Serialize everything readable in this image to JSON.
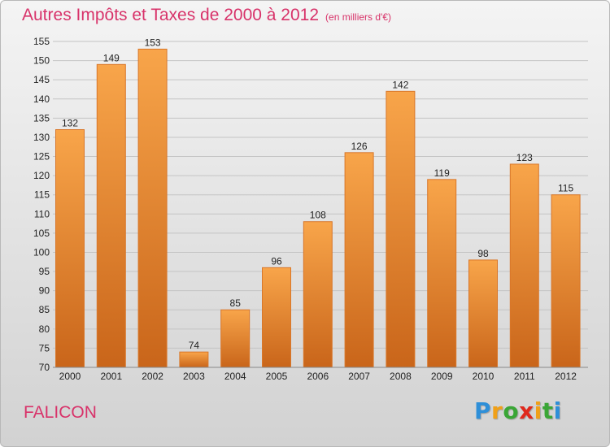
{
  "title": "Autres Impôts et Taxes de 2000 à 2012",
  "subtitle": "(en milliers d'€)",
  "place": "FALICON",
  "logo": {
    "letters": [
      "P",
      "r",
      "o",
      "x",
      "i",
      "t",
      "i"
    ],
    "colors": [
      "#2e8fd8",
      "#f0a018",
      "#3aa636",
      "#e0281c",
      "#f0a018",
      "#3aa636",
      "#2e8fd8"
    ]
  },
  "colors": {
    "bar_top": "#f8a54a",
    "bar_bottom": "#c9651a",
    "bar_edge": "#d9772a",
    "title": "#d8336a"
  },
  "chart_data": {
    "type": "bar",
    "categories": [
      "2000",
      "2001",
      "2002",
      "2003",
      "2004",
      "2005",
      "2006",
      "2007",
      "2008",
      "2009",
      "2010",
      "2011",
      "2012"
    ],
    "values": [
      132,
      149,
      153,
      74,
      85,
      96,
      108,
      126,
      142,
      119,
      98,
      123,
      115
    ],
    "title": "Autres Impôts et Taxes de 2000 à 2012",
    "subtitle": "(en milliers d'€)",
    "xlabel": "",
    "ylabel": "",
    "ylim": [
      70,
      155
    ],
    "yticks": [
      70,
      75,
      80,
      85,
      90,
      95,
      100,
      105,
      110,
      115,
      120,
      125,
      130,
      135,
      140,
      145,
      150,
      155
    ],
    "grid": true
  }
}
